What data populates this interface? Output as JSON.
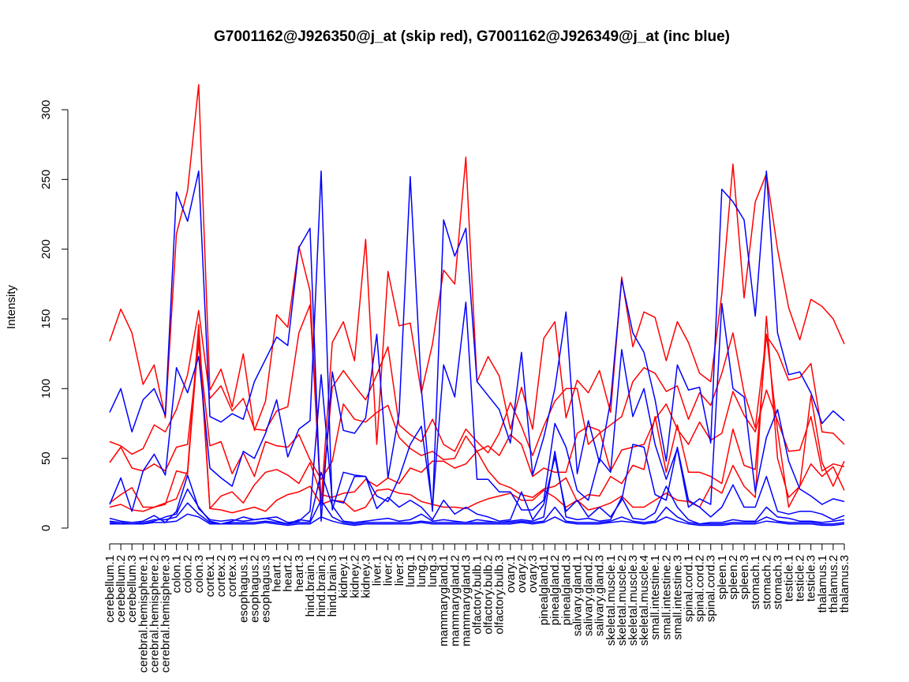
{
  "chart_data": {
    "type": "line",
    "title": "G7001162@J926350@j_at (skip red), G7001162@J926349@j_at (inc blue)",
    "xlabel": "",
    "ylabel": "Intensity",
    "ylim": [
      0,
      315
    ],
    "yticks": [
      0,
      50,
      100,
      150,
      200,
      250,
      300
    ],
    "grid": false,
    "legend": "none",
    "colors": {
      "skip": "#ff0000",
      "inc": "#0000ff"
    },
    "categories": [
      "cerebellum.1",
      "cerebellum.2",
      "cerebellum.3",
      "cerebral.hemisphere.1",
      "cerebral.hemisphere.2",
      "cerebral.hemisphere.3",
      "colon.1",
      "colon.2",
      "colon.3",
      "cortex.1",
      "cortex.2",
      "cortex.3",
      "esophagus.1",
      "esophagus.2",
      "esophagus.3",
      "heart.1",
      "heart.2",
      "heart.3",
      "hind.brain.1",
      "hind.brain.2",
      "hind.brain.3",
      "kidney.1",
      "kidney.2",
      "kidney.3",
      "liver.1",
      "liver.2",
      "liver.3",
      "lung.1",
      "lung.2",
      "lung.3",
      "mammarygland.1",
      "mammarygland.2",
      "mammarygland.3",
      "olfactory.bulb.1",
      "olfactory.bulb.2",
      "olfactory.bulb.3",
      "ovary.1",
      "ovary.2",
      "ovary.3",
      "pinealgland.1",
      "pinealgland.2",
      "pinealgland.3",
      "salivary.gland.1",
      "salivary.gland.2",
      "salivary.gland.3",
      "skeletal.muscle.1",
      "skeletal.muscle.2",
      "skeletal.muscle.3",
      "skeletal.muscle.4",
      "small.intestine.1",
      "small.intestine.2",
      "small.intestine.3",
      "spinal.cord.1",
      "spinal.cord.2",
      "spinal.cord.3",
      "spleen.1",
      "spleen.2",
      "spleen.3",
      "stomach.1",
      "stomach.2",
      "stomach.3",
      "testicle.1",
      "testicle.2",
      "testicle.3",
      "thalamus.1",
      "thalamus.2",
      "thalamus.3"
    ],
    "series": [
      {
        "group": "skip",
        "values": [
          134,
          157,
          140,
          103,
          117,
          79,
          211,
          242,
          318,
          99,
          114,
          87,
          125,
          70,
          91,
          153,
          144,
          202,
          170,
          18,
          133,
          148,
          120,
          207,
          60,
          184,
          145,
          147,
          97,
          132,
          185,
          175,
          266,
          105,
          123,
          109,
          71,
          101,
          71,
          136,
          148,
          79,
          106,
          97,
          113,
          83,
          180,
          130,
          155,
          151,
          120,
          148,
          133,
          111,
          105,
          168,
          261,
          165,
          234,
          254,
          200,
          158,
          135,
          164,
          159,
          150,
          132
        ]
      },
      {
        "group": "skip",
        "values": [
          62,
          59,
          53,
          57,
          74,
          69,
          85,
          110,
          156,
          93,
          102,
          84,
          93,
          71,
          70,
          84,
          87,
          140,
          160,
          16,
          101,
          113,
          102,
          92,
          110,
          130,
          74,
          67,
          62,
          78,
          60,
          55,
          71,
          62,
          54,
          68,
          90,
          73,
          52,
          73,
          91,
          100,
          100,
          60,
          68,
          74,
          80,
          105,
          115,
          111,
          98,
          102,
          78,
          97,
          88,
          111,
          140,
          97,
          72,
          138,
          126,
          106,
          108,
          118,
          69,
          68,
          60
        ]
      },
      {
        "group": "skip",
        "values": [
          47,
          58,
          43,
          41,
          46,
          41,
          58,
          60,
          132,
          59,
          62,
          39,
          54,
          37,
          62,
          59,
          58,
          67,
          49,
          35,
          48,
          89,
          78,
          76,
          83,
          88,
          65,
          57,
          52,
          55,
          49,
          50,
          66,
          55,
          59,
          52,
          67,
          60,
          37,
          43,
          40,
          40,
          68,
          73,
          70,
          41,
          56,
          58,
          60,
          78,
          89,
          71,
          60,
          76,
          63,
          68,
          98,
          81,
          69,
          99,
          77,
          55,
          56,
          80,
          41,
          46,
          44
        ]
      },
      {
        "group": "skip",
        "values": [
          18,
          24,
          29,
          15,
          15,
          17,
          41,
          39,
          138,
          14,
          23,
          26,
          18,
          31,
          40,
          42,
          38,
          32,
          47,
          24,
          22,
          25,
          26,
          35,
          30,
          36,
          32,
          43,
          40,
          48,
          48,
          43,
          46,
          55,
          41,
          32,
          29,
          24,
          22,
          28,
          30,
          36,
          19,
          24,
          23,
          37,
          32,
          45,
          42,
          80,
          40,
          74,
          40,
          40,
          37,
          32,
          71,
          45,
          42,
          139,
          70,
          15,
          30,
          95,
          47,
          30,
          48
        ]
      },
      {
        "group": "skip",
        "values": [
          15,
          17,
          13,
          12,
          15,
          18,
          21,
          41,
          146,
          14,
          13,
          11,
          13,
          15,
          12,
          20,
          24,
          26,
          30,
          17,
          20,
          19,
          12,
          15,
          27,
          28,
          25,
          24,
          19,
          17,
          15,
          15,
          14,
          18,
          21,
          23,
          25,
          20,
          20,
          27,
          22,
          15,
          20,
          13,
          15,
          18,
          23,
          15,
          15,
          20,
          25,
          20,
          19,
          15,
          30,
          25,
          45,
          30,
          22,
          152,
          50,
          22,
          30,
          46,
          37,
          44,
          27
        ]
      },
      {
        "group": "inc",
        "values": [
          83,
          100,
          69,
          92,
          100,
          81,
          241,
          220,
          256,
          80,
          76,
          82,
          78,
          105,
          121,
          137,
          131,
          201,
          215,
          5,
          112,
          70,
          68,
          79,
          139,
          36,
          82,
          252,
          100,
          12,
          221,
          195,
          215,
          105,
          95,
          85,
          61,
          126,
          38,
          65,
          100,
          155,
          39,
          77,
          47,
          91,
          178,
          140,
          126,
          92,
          48,
          117,
          99,
          101,
          61,
          243,
          234,
          221,
          152,
          256,
          140,
          110,
          112,
          97,
          75,
          84,
          77
        ]
      },
      {
        "group": "inc",
        "values": [
          17,
          36,
          12,
          41,
          53,
          38,
          115,
          97,
          123,
          43,
          36,
          30,
          55,
          50,
          68,
          92,
          51,
          71,
          77,
          256,
          13,
          40,
          38,
          37,
          23,
          19,
          36,
          60,
          73,
          15,
          117,
          94,
          162,
          35,
          35,
          26,
          26,
          13,
          13,
          20,
          75,
          58,
          27,
          20,
          50,
          40,
          128,
          80,
          100,
          60,
          35,
          57,
          15,
          21,
          17,
          161,
          100,
          94,
          26,
          65,
          85,
          48,
          28,
          23,
          17,
          21,
          19
        ]
      },
      {
        "group": "inc",
        "values": [
          7,
          5,
          4,
          5,
          9,
          4,
          12,
          38,
          14,
          6,
          5,
          6,
          5,
          6,
          7,
          8,
          4,
          5,
          12,
          110,
          20,
          18,
          37,
          37,
          14,
          22,
          15,
          20,
          15,
          6,
          20,
          10,
          15,
          10,
          8,
          5,
          6,
          26,
          6,
          17,
          51,
          12,
          20,
          8,
          15,
          8,
          20,
          60,
          58,
          24,
          20,
          58,
          20,
          15,
          8,
          15,
          31,
          15,
          15,
          37,
          12,
          10,
          12,
          12,
          10,
          6,
          9
        ]
      },
      {
        "group": "inc",
        "values": [
          5,
          4,
          3,
          3,
          5,
          8,
          10,
          28,
          15,
          5,
          3,
          5,
          8,
          6,
          7,
          5,
          3,
          6,
          5,
          40,
          16,
          5,
          4,
          5,
          6,
          7,
          5,
          6,
          10,
          5,
          6,
          5,
          4,
          6,
          5,
          4,
          5,
          6,
          5,
          8,
          55,
          8,
          6,
          7,
          5,
          6,
          22,
          7,
          6,
          11,
          30,
          15,
          6,
          3,
          4,
          4,
          6,
          5,
          5,
          15,
          8,
          7,
          5,
          5,
          4,
          5,
          6
        ]
      },
      {
        "group": "inc",
        "values": [
          4,
          3,
          3,
          4,
          6,
          6,
          8,
          18,
          10,
          4,
          3,
          4,
          4,
          4,
          5,
          4,
          3,
          4,
          4,
          20,
          8,
          4,
          3,
          4,
          4,
          4,
          4,
          4,
          5,
          4,
          4,
          4,
          4,
          4,
          4,
          4,
          4,
          5,
          4,
          5,
          15,
          5,
          4,
          4,
          4,
          5,
          8,
          5,
          4,
          5,
          15,
          8,
          4,
          3,
          3,
          3,
          4,
          4,
          4,
          8,
          5,
          4,
          4,
          4,
          3,
          3,
          4
        ]
      },
      {
        "group": "inc",
        "values": [
          3,
          3,
          3,
          3,
          4,
          4,
          5,
          10,
          8,
          3,
          3,
          3,
          3,
          3,
          4,
          3,
          2,
          3,
          3,
          8,
          5,
          3,
          2,
          3,
          3,
          3,
          3,
          3,
          4,
          3,
          3,
          3,
          3,
          3,
          3,
          3,
          3,
          4,
          3,
          4,
          8,
          4,
          3,
          3,
          3,
          4,
          5,
          4,
          3,
          4,
          8,
          5,
          3,
          2,
          2,
          2,
          3,
          3,
          3,
          5,
          4,
          3,
          3,
          3,
          2,
          2,
          3
        ]
      }
    ]
  }
}
